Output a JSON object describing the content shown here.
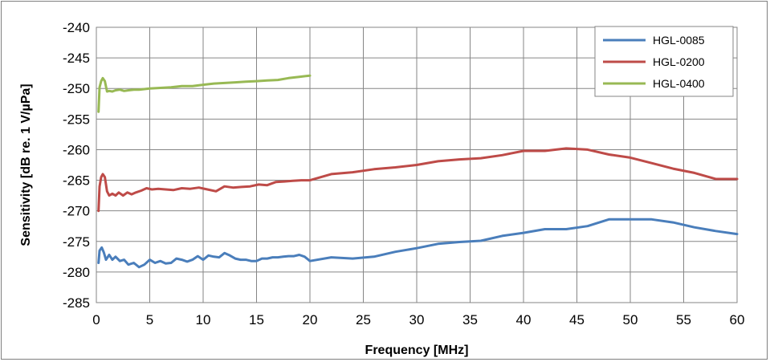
{
  "chart_data": {
    "type": "line",
    "title": "",
    "xlabel": "Frequency [MHz]",
    "ylabel": "Sensitivity  [dB re. 1 V/µPa]",
    "xlim": [
      0,
      60
    ],
    "ylim": [
      -285,
      -240
    ],
    "xticks": [
      0,
      5,
      10,
      15,
      20,
      25,
      30,
      35,
      40,
      45,
      50,
      55,
      60
    ],
    "yticks": [
      -240,
      -245,
      -250,
      -255,
      -260,
      -265,
      -270,
      -275,
      -280,
      -285
    ],
    "grid": true,
    "legend_position": "top-right",
    "series": [
      {
        "name": "HGL-0085",
        "color": "#4a7ebb",
        "x": [
          0.2,
          0.3,
          0.5,
          0.7,
          0.9,
          1.2,
          1.5,
          1.8,
          2.2,
          2.6,
          3.0,
          3.5,
          4.0,
          4.5,
          5.0,
          5.5,
          6.0,
          6.5,
          7.0,
          7.5,
          8.0,
          8.5,
          9.0,
          9.5,
          10.0,
          10.5,
          11.0,
          11.5,
          12.0,
          12.5,
          13.0,
          13.5,
          14.0,
          14.5,
          15.0,
          15.5,
          16.0,
          16.5,
          17.0,
          17.5,
          18.0,
          18.5,
          19.0,
          19.5,
          20.0,
          22,
          24,
          26,
          28,
          30,
          32,
          34,
          36,
          38,
          40,
          42,
          44,
          46,
          48,
          50,
          52,
          54,
          56,
          58,
          60
        ],
        "y": [
          -278.5,
          -276.5,
          -276.0,
          -276.8,
          -278.0,
          -277.2,
          -278.0,
          -277.5,
          -278.2,
          -278.0,
          -278.8,
          -278.5,
          -279.2,
          -278.8,
          -278.0,
          -278.5,
          -278.2,
          -278.6,
          -278.5,
          -277.8,
          -278.0,
          -278.3,
          -278.0,
          -277.4,
          -278.0,
          -277.3,
          -277.5,
          -277.6,
          -276.9,
          -277.3,
          -277.8,
          -278.0,
          -278.0,
          -278.2,
          -278.2,
          -277.8,
          -277.8,
          -277.6,
          -277.6,
          -277.5,
          -277.4,
          -277.4,
          -277.2,
          -277.5,
          -278.2,
          -277.6,
          -277.8,
          -277.5,
          -276.7,
          -276.1,
          -275.4,
          -275.1,
          -274.9,
          -274.1,
          -273.6,
          -273.0,
          -273.0,
          -272.5,
          -271.4,
          -271.4,
          -271.4,
          -271.9,
          -272.7,
          -273.3,
          -273.8
        ]
      },
      {
        "name": "HGL-0200",
        "color": "#be4b48",
        "x": [
          0.2,
          0.3,
          0.45,
          0.6,
          0.8,
          1.0,
          1.2,
          1.5,
          1.8,
          2.1,
          2.5,
          2.9,
          3.3,
          3.7,
          4.2,
          4.7,
          5.2,
          5.8,
          6.5,
          7.2,
          8.0,
          8.8,
          9.6,
          10.4,
          11.2,
          12.0,
          12.8,
          13.6,
          14.4,
          15.2,
          16.0,
          16.8,
          17.6,
          18.4,
          19.2,
          20.0,
          22,
          24,
          26,
          28,
          30,
          32,
          34,
          36,
          38,
          40,
          42,
          44,
          46,
          48,
          50,
          52,
          54,
          56,
          58,
          60
        ],
        "y": [
          -270.0,
          -266.0,
          -264.5,
          -264.0,
          -264.5,
          -266.8,
          -267.5,
          -267.2,
          -267.5,
          -267.0,
          -267.5,
          -267.0,
          -267.3,
          -267.0,
          -266.7,
          -266.3,
          -266.5,
          -266.4,
          -266.5,
          -266.6,
          -266.3,
          -266.4,
          -266.2,
          -266.5,
          -266.8,
          -266.0,
          -266.2,
          -266.1,
          -266.0,
          -265.7,
          -265.8,
          -265.3,
          -265.2,
          -265.1,
          -265.0,
          -265.0,
          -264.0,
          -263.7,
          -263.2,
          -262.9,
          -262.5,
          -261.9,
          -261.6,
          -261.4,
          -260.9,
          -260.2,
          -260.2,
          -259.8,
          -260.0,
          -260.8,
          -261.3,
          -262.2,
          -263.1,
          -263.8,
          -264.8,
          -264.8
        ]
      },
      {
        "name": "HGL-0400",
        "color": "#98b954",
        "x": [
          0.2,
          0.3,
          0.45,
          0.6,
          0.8,
          1.0,
          1.2,
          1.5,
          1.8,
          2.2,
          2.6,
          3.0,
          3.5,
          4.0,
          5.0,
          6.0,
          7.0,
          8.0,
          9.0,
          10.0,
          11.0,
          12.0,
          13.0,
          14.0,
          15.0,
          16.0,
          17.0,
          18.0,
          19.0,
          20.0
        ],
        "y": [
          -253.8,
          -249.8,
          -248.8,
          -248.3,
          -248.8,
          -250.5,
          -250.4,
          -250.5,
          -250.3,
          -250.2,
          -250.4,
          -250.3,
          -250.2,
          -250.2,
          -250.0,
          -249.9,
          -249.8,
          -249.6,
          -249.6,
          -249.4,
          -249.2,
          -249.1,
          -249.0,
          -248.9,
          -248.8,
          -248.7,
          -248.6,
          -248.3,
          -248.1,
          -247.9
        ]
      }
    ]
  }
}
